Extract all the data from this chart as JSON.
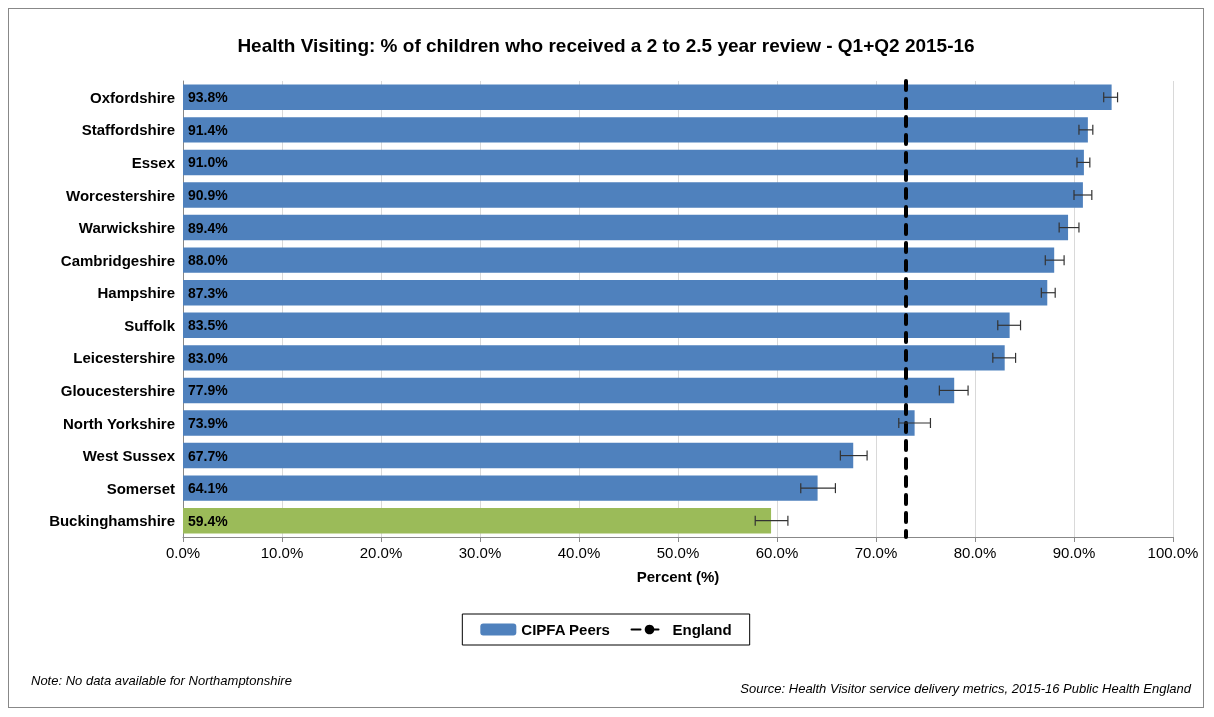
{
  "chart_data": {
    "type": "bar",
    "orientation": "horizontal",
    "title": "Health Visiting: % of children who received a 2 to 2.5 year review - Q1+Q2 2015-16",
    "xlabel": "Percent (%)",
    "categories": [
      "Oxfordshire",
      "Staffordshire",
      "Essex",
      "Worcestershire",
      "Warwickshire",
      "Cambridgeshire",
      "Hampshire",
      "Suffolk",
      "Leicestershire",
      "Gloucestershire",
      "North Yorkshire",
      "West Sussex",
      "Somerset",
      "Buckinghamshire"
    ],
    "series": [
      {
        "name": "CIPFA Peers",
        "color": "#4f81bd",
        "values": [
          93.8,
          91.4,
          91.0,
          90.9,
          89.4,
          88.0,
          87.3,
          83.5,
          83.0,
          77.9,
          73.9,
          67.7,
          64.1,
          59.4
        ],
        "colors": [
          "#4f81bd",
          "#4f81bd",
          "#4f81bd",
          "#4f81bd",
          "#4f81bd",
          "#4f81bd",
          "#4f81bd",
          "#4f81bd",
          "#4f81bd",
          "#4f81bd",
          "#4f81bd",
          "#4f81bd",
          "#4f81bd",
          "#9bbb59"
        ],
        "value_labels": [
          "93.8%",
          "91.4%",
          "91.0%",
          "90.9%",
          "89.4%",
          "88.0%",
          "87.3%",
          "83.5%",
          "83.0%",
          "77.9%",
          "73.9%",
          "67.7%",
          "64.1%",
          "59.4%"
        ],
        "errors": [
          [
            93.0,
            94.4
          ],
          [
            90.5,
            91.9
          ],
          [
            90.3,
            91.6
          ],
          [
            90.0,
            91.8
          ],
          [
            88.5,
            90.5
          ],
          [
            87.1,
            89.0
          ],
          [
            86.7,
            88.1
          ],
          [
            82.3,
            84.6
          ],
          [
            81.8,
            84.1
          ],
          [
            76.4,
            79.3
          ],
          [
            72.3,
            75.5
          ],
          [
            66.4,
            69.1
          ],
          [
            62.4,
            65.9
          ],
          [
            57.8,
            61.1
          ]
        ]
      }
    ],
    "ref_lines": [
      {
        "axis": "x",
        "value": 73.0,
        "label": "England",
        "color": "#000000",
        "line_style": "dashed"
      }
    ],
    "xlim": [
      0,
      100
    ],
    "xticks": [
      {
        "value": 0,
        "label": "0.0%"
      },
      {
        "value": 10,
        "label": "10.0%"
      },
      {
        "value": 20,
        "label": "20.0%"
      },
      {
        "value": 30,
        "label": "30.0%"
      },
      {
        "value": 40,
        "label": "40.0%"
      },
      {
        "value": 50,
        "label": "50.0%"
      },
      {
        "value": 60,
        "label": "60.0%"
      },
      {
        "value": 70,
        "label": "70.0%"
      },
      {
        "value": 80,
        "label": "80.0%"
      },
      {
        "value": 90,
        "label": "90.0%"
      },
      {
        "value": 100,
        "label": "100.0%"
      }
    ],
    "grid": "x",
    "legend": "bottom",
    "annotations": [
      "Note: No data available for Northamptonshire",
      "Source: Health Visitor service delivery metrics, 2015-16 Public Health England"
    ]
  }
}
